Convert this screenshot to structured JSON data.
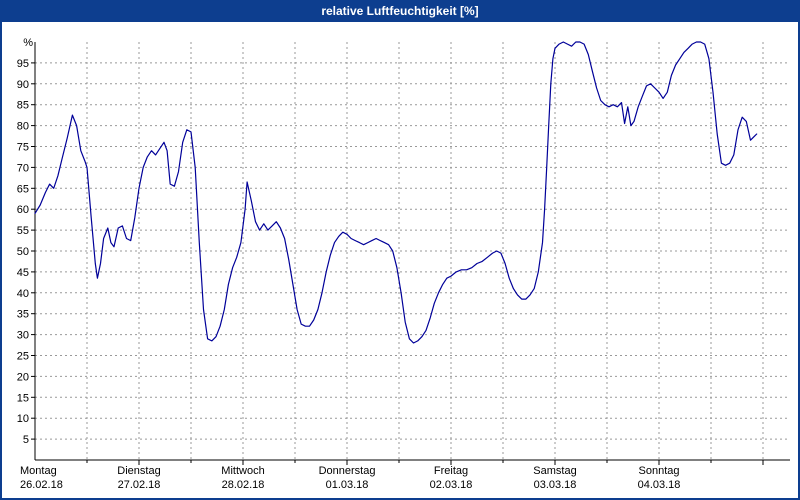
{
  "title_bar": {
    "title": "relative Luftfeuchtigkeit [%]",
    "bg_color": "#0d3e8f",
    "text_color": "#ffffff"
  },
  "chart_data": {
    "type": "line",
    "title": "relative Luftfeuchtigkeit [%]",
    "ylabel": "%",
    "xlabel": "",
    "ylim": [
      0,
      100
    ],
    "ytick_min": 5,
    "ytick_max": 95,
    "ytick_step": 5,
    "x_range_days": [
      0,
      7.26
    ],
    "grid": "dashed; horizontal every 5 %, vertical every half day",
    "legend": "none",
    "line_color": "#000099",
    "grid_color": "#999999",
    "axis_color": "#000000",
    "days": [
      {
        "name": "Montag",
        "date": "26.02.18",
        "t": 0
      },
      {
        "name": "Dienstag",
        "date": "27.02.18",
        "t": 1
      },
      {
        "name": "Mittwoch",
        "date": "28.02.18",
        "t": 2
      },
      {
        "name": "Donnerstag",
        "date": "01.03.18",
        "t": 3
      },
      {
        "name": "Freitag",
        "date": "02.03.18",
        "t": 4
      },
      {
        "name": "Samstag",
        "date": "03.03.18",
        "t": 5
      },
      {
        "name": "Sonntag",
        "date": "04.03.18",
        "t": 6
      }
    ],
    "series": [
      {
        "name": "relative Luftfeuchtigkeit",
        "unit": "%",
        "points": [
          [
            0.0,
            59
          ],
          [
            0.05,
            61
          ],
          [
            0.1,
            64
          ],
          [
            0.14,
            66
          ],
          [
            0.18,
            65
          ],
          [
            0.22,
            68
          ],
          [
            0.26,
            72
          ],
          [
            0.31,
            77
          ],
          [
            0.36,
            82.5
          ],
          [
            0.4,
            80
          ],
          [
            0.44,
            74
          ],
          [
            0.48,
            71.5
          ],
          [
            0.5,
            70
          ],
          [
            0.54,
            58
          ],
          [
            0.58,
            47
          ],
          [
            0.6,
            43.5
          ],
          [
            0.63,
            47
          ],
          [
            0.66,
            53
          ],
          [
            0.7,
            55.5
          ],
          [
            0.73,
            52
          ],
          [
            0.76,
            51
          ],
          [
            0.8,
            55.5
          ],
          [
            0.84,
            56
          ],
          [
            0.88,
            53
          ],
          [
            0.92,
            52.5
          ],
          [
            0.96,
            58
          ],
          [
            1.0,
            65
          ],
          [
            1.04,
            70
          ],
          [
            1.08,
            72.5
          ],
          [
            1.12,
            74
          ],
          [
            1.16,
            73
          ],
          [
            1.2,
            74.5
          ],
          [
            1.24,
            76
          ],
          [
            1.27,
            74
          ],
          [
            1.3,
            66
          ],
          [
            1.34,
            65.5
          ],
          [
            1.38,
            69
          ],
          [
            1.42,
            76
          ],
          [
            1.46,
            79
          ],
          [
            1.5,
            78.5
          ],
          [
            1.54,
            70
          ],
          [
            1.58,
            52
          ],
          [
            1.62,
            36
          ],
          [
            1.66,
            29
          ],
          [
            1.7,
            28.5
          ],
          [
            1.74,
            29.5
          ],
          [
            1.78,
            32
          ],
          [
            1.82,
            36
          ],
          [
            1.86,
            42
          ],
          [
            1.9,
            46
          ],
          [
            1.94,
            48.5
          ],
          [
            1.98,
            52
          ],
          [
            2.02,
            60
          ],
          [
            2.04,
            66.5
          ],
          [
            2.08,
            62
          ],
          [
            2.12,
            57
          ],
          [
            2.16,
            55
          ],
          [
            2.2,
            56.5
          ],
          [
            2.24,
            55
          ],
          [
            2.28,
            56
          ],
          [
            2.32,
            57
          ],
          [
            2.36,
            55.5
          ],
          [
            2.4,
            53
          ],
          [
            2.44,
            48
          ],
          [
            2.48,
            42
          ],
          [
            2.52,
            36
          ],
          [
            2.56,
            32.5
          ],
          [
            2.6,
            32
          ],
          [
            2.64,
            32
          ],
          [
            2.68,
            33.5
          ],
          [
            2.72,
            36
          ],
          [
            2.76,
            40
          ],
          [
            2.8,
            45
          ],
          [
            2.84,
            49
          ],
          [
            2.88,
            52
          ],
          [
            2.92,
            53.5
          ],
          [
            2.96,
            54.5
          ],
          [
            3.0,
            54
          ],
          [
            3.04,
            53
          ],
          [
            3.08,
            52.5
          ],
          [
            3.12,
            52
          ],
          [
            3.16,
            51.5
          ],
          [
            3.2,
            52
          ],
          [
            3.24,
            52.5
          ],
          [
            3.28,
            53
          ],
          [
            3.32,
            52.5
          ],
          [
            3.36,
            52
          ],
          [
            3.4,
            51.5
          ],
          [
            3.44,
            50
          ],
          [
            3.48,
            46
          ],
          [
            3.52,
            40
          ],
          [
            3.56,
            33
          ],
          [
            3.6,
            29
          ],
          [
            3.64,
            28
          ],
          [
            3.68,
            28.5
          ],
          [
            3.72,
            29.5
          ],
          [
            3.76,
            31
          ],
          [
            3.8,
            34
          ],
          [
            3.84,
            37.5
          ],
          [
            3.88,
            40
          ],
          [
            3.92,
            42
          ],
          [
            3.96,
            43.5
          ],
          [
            4.0,
            44
          ],
          [
            4.05,
            45
          ],
          [
            4.1,
            45.5
          ],
          [
            4.15,
            45.5
          ],
          [
            4.2,
            46
          ],
          [
            4.25,
            47
          ],
          [
            4.3,
            47.5
          ],
          [
            4.35,
            48.5
          ],
          [
            4.4,
            49.5
          ],
          [
            4.44,
            50
          ],
          [
            4.48,
            49.5
          ],
          [
            4.52,
            47
          ],
          [
            4.56,
            43.5
          ],
          [
            4.6,
            41
          ],
          [
            4.64,
            39.5
          ],
          [
            4.68,
            38.5
          ],
          [
            4.72,
            38.5
          ],
          [
            4.76,
            39.5
          ],
          [
            4.8,
            41
          ],
          [
            4.84,
            45
          ],
          [
            4.88,
            52
          ],
          [
            4.9,
            60
          ],
          [
            4.92,
            70
          ],
          [
            4.94,
            80
          ],
          [
            4.96,
            90
          ],
          [
            4.98,
            96
          ],
          [
            5.0,
            98.5
          ],
          [
            5.04,
            99.5
          ],
          [
            5.08,
            100
          ],
          [
            5.12,
            99.5
          ],
          [
            5.16,
            99
          ],
          [
            5.2,
            100
          ],
          [
            5.24,
            100
          ],
          [
            5.28,
            99.5
          ],
          [
            5.32,
            97
          ],
          [
            5.36,
            93
          ],
          [
            5.4,
            89
          ],
          [
            5.44,
            86
          ],
          [
            5.48,
            85
          ],
          [
            5.52,
            84.5
          ],
          [
            5.56,
            85
          ],
          [
            5.6,
            84.5
          ],
          [
            5.64,
            85.5
          ],
          [
            5.67,
            80.5
          ],
          [
            5.7,
            84.5
          ],
          [
            5.73,
            80
          ],
          [
            5.76,
            81
          ],
          [
            5.8,
            84.5
          ],
          [
            5.84,
            87
          ],
          [
            5.88,
            89.5
          ],
          [
            5.92,
            90
          ],
          [
            5.96,
            89
          ],
          [
            6.0,
            88
          ],
          [
            6.04,
            86.5
          ],
          [
            6.08,
            88
          ],
          [
            6.12,
            92
          ],
          [
            6.16,
            94.5
          ],
          [
            6.2,
            96
          ],
          [
            6.24,
            97.5
          ],
          [
            6.28,
            98.5
          ],
          [
            6.32,
            99.5
          ],
          [
            6.36,
            100
          ],
          [
            6.4,
            100
          ],
          [
            6.44,
            99.5
          ],
          [
            6.48,
            96
          ],
          [
            6.52,
            88
          ],
          [
            6.56,
            78
          ],
          [
            6.6,
            71
          ],
          [
            6.64,
            70.5
          ],
          [
            6.68,
            71
          ],
          [
            6.72,
            73
          ],
          [
            6.76,
            79
          ],
          [
            6.8,
            82
          ],
          [
            6.84,
            81
          ],
          [
            6.88,
            76.5
          ],
          [
            6.92,
            77.5
          ],
          [
            6.94,
            78
          ]
        ]
      }
    ]
  }
}
